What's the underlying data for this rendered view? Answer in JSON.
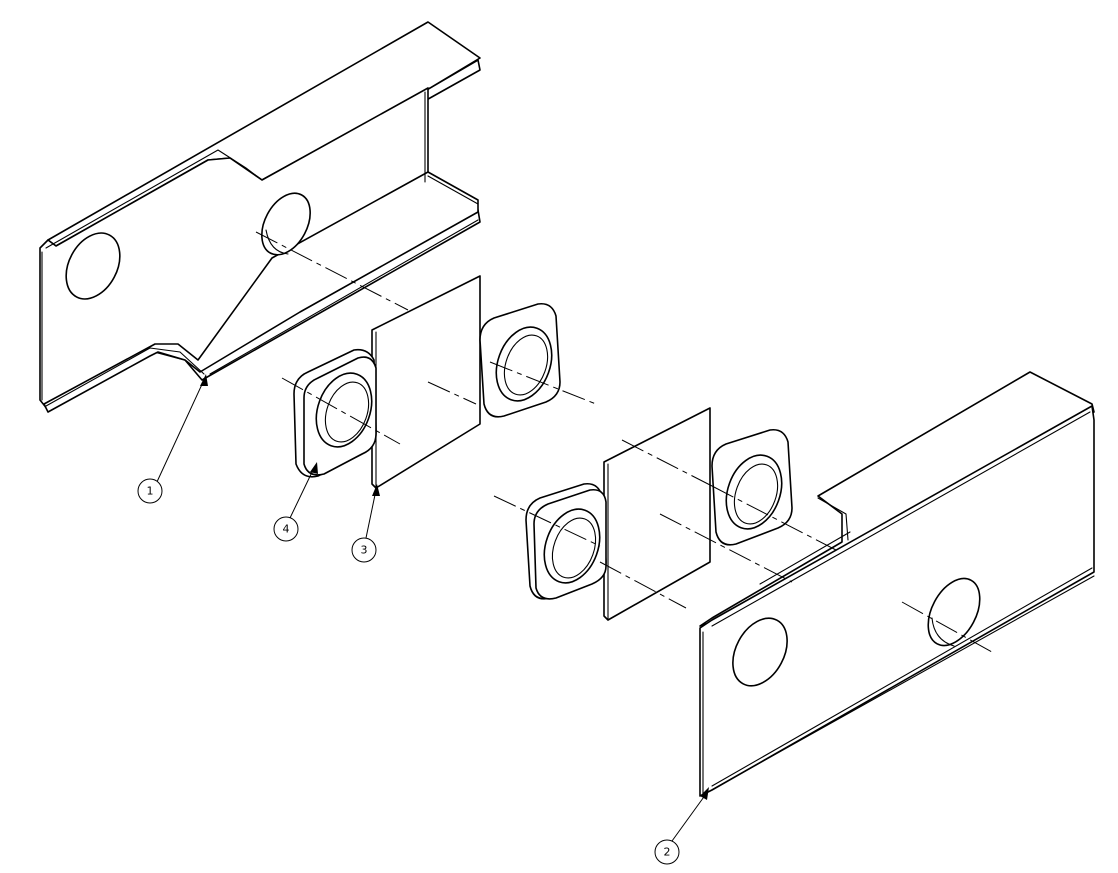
{
  "balloons": [
    {
      "id": "balloon-1",
      "label": "1"
    },
    {
      "id": "balloon-2",
      "label": "2"
    },
    {
      "id": "balloon-3",
      "label": "3"
    },
    {
      "id": "balloon-4",
      "label": "4"
    }
  ],
  "colors": {
    "line": "#000000",
    "background": "#ffffff"
  }
}
